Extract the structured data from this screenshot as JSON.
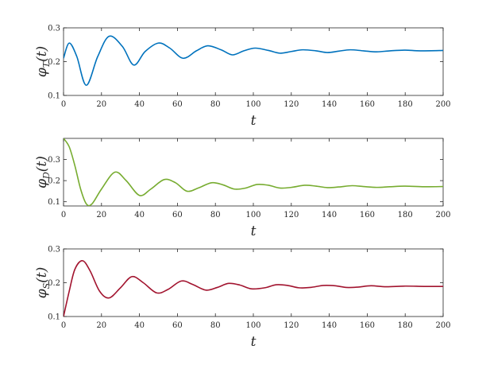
{
  "chart_data": [
    {
      "type": "line",
      "xlabel": "t",
      "ylabel": "φT(t)",
      "ylabel_main": "φ",
      "ylabel_sub": "T",
      "ylabel_arg": "(t)",
      "xlim": [
        0,
        200
      ],
      "ylim": [
        0.1,
        0.3
      ],
      "xticks": [
        0,
        20,
        40,
        60,
        80,
        100,
        120,
        140,
        160,
        180,
        200
      ],
      "yticks": [
        0.1,
        0.2,
        0.3
      ],
      "color": "#0072BD",
      "series": [
        {
          "x": [
            0,
            3,
            7,
            12,
            18,
            24,
            31,
            37,
            43,
            50,
            56,
            63,
            70,
            76,
            83,
            89,
            95,
            101,
            108,
            114,
            120,
            126,
            133,
            139,
            145,
            151,
            158,
            165,
            172,
            180,
            188,
            200
          ],
          "values": [
            0.21,
            0.255,
            0.215,
            0.13,
            0.215,
            0.275,
            0.245,
            0.19,
            0.23,
            0.255,
            0.24,
            0.21,
            0.232,
            0.247,
            0.235,
            0.22,
            0.232,
            0.24,
            0.233,
            0.225,
            0.23,
            0.235,
            0.232,
            0.227,
            0.231,
            0.235,
            0.232,
            0.229,
            0.232,
            0.234,
            0.232,
            0.233
          ]
        }
      ]
    },
    {
      "type": "line",
      "xlabel": "t",
      "ylabel": "φD(t)",
      "ylabel_main": "φ",
      "ylabel_sub": "D",
      "ylabel_arg": "(t)",
      "xlim": [
        0,
        200
      ],
      "ylim": [
        0.08,
        0.4
      ],
      "xticks": [
        0,
        20,
        40,
        60,
        80,
        100,
        120,
        140,
        160,
        180,
        200
      ],
      "yticks": [
        0.1,
        0.2,
        0.3
      ],
      "color": "#77AC30",
      "series": [
        {
          "x": [
            0,
            3,
            6,
            9,
            12,
            15,
            20,
            27,
            33,
            40,
            46,
            53,
            59,
            65,
            71,
            78,
            84,
            90,
            96,
            102,
            108,
            114,
            120,
            127,
            133,
            139,
            145,
            152,
            158,
            165,
            172,
            180,
            190,
            200
          ],
          "values": [
            0.4,
            0.36,
            0.27,
            0.16,
            0.09,
            0.09,
            0.16,
            0.24,
            0.2,
            0.13,
            0.16,
            0.205,
            0.19,
            0.15,
            0.165,
            0.19,
            0.18,
            0.16,
            0.165,
            0.182,
            0.178,
            0.165,
            0.168,
            0.178,
            0.174,
            0.167,
            0.17,
            0.176,
            0.172,
            0.168,
            0.171,
            0.174,
            0.171,
            0.172
          ]
        }
      ]
    },
    {
      "type": "line",
      "xlabel": "t",
      "ylabel": "φS(t)",
      "ylabel_main": "φ",
      "ylabel_sub": "S",
      "ylabel_arg": "(t)",
      "xlim": [
        0,
        200
      ],
      "ylim": [
        0.1,
        0.3
      ],
      "xticks": [
        0,
        20,
        40,
        60,
        80,
        100,
        120,
        140,
        160,
        180,
        200
      ],
      "yticks": [
        0.1,
        0.2,
        0.3
      ],
      "color": "#A2142F",
      "series": [
        {
          "x": [
            0,
            3,
            6,
            10,
            14,
            19,
            24,
            30,
            36,
            42,
            49,
            55,
            62,
            68,
            75,
            81,
            87,
            93,
            99,
            106,
            112,
            118,
            124,
            130,
            137,
            143,
            149,
            155,
            162,
            170,
            180,
            190,
            200
          ],
          "values": [
            0.1,
            0.175,
            0.24,
            0.265,
            0.235,
            0.175,
            0.155,
            0.185,
            0.218,
            0.2,
            0.17,
            0.18,
            0.205,
            0.195,
            0.178,
            0.186,
            0.198,
            0.193,
            0.182,
            0.185,
            0.194,
            0.192,
            0.185,
            0.186,
            0.192,
            0.191,
            0.186,
            0.187,
            0.191,
            0.188,
            0.19,
            0.189,
            0.189
          ]
        }
      ]
    }
  ]
}
